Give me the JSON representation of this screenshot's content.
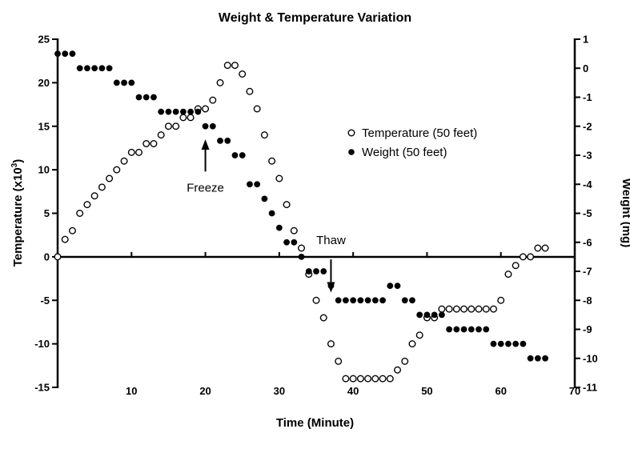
{
  "chart_data": {
    "type": "scatter",
    "title": "Weight & Temperature Variation",
    "xlabel": "Time (Minute)",
    "ylabel": "Temperature (x10",
    "ylabel_sup": "3",
    "ylabel_close": ")",
    "y2label": "Weight (mg)",
    "xlim": [
      0,
      70
    ],
    "ylim": [
      -15,
      25
    ],
    "y2lim": [
      -11,
      1
    ],
    "x_ticks": [
      10,
      20,
      30,
      40,
      50,
      60,
      70
    ],
    "y_ticks": [
      -15,
      -10,
      -5,
      0,
      5,
      10,
      15,
      20,
      25
    ],
    "y2_ticks": [
      -11,
      -10,
      -9,
      -8,
      -7,
      -6,
      -5,
      -4,
      -3,
      -2,
      -1,
      0,
      1
    ],
    "legend": [
      {
        "label": "Temperature (50 feet)",
        "marker": "open-circle"
      },
      {
        "label": "Weight (50 feet)",
        "marker": "filled-circle"
      }
    ],
    "annotations": [
      {
        "text": "Freeze",
        "x": 20,
        "arrow_tip_y": 13.5,
        "arrow_tail_y": 9.8,
        "direction": "up"
      },
      {
        "text": "Thaw",
        "x": 37,
        "arrow_tip_y": -4.1,
        "arrow_tail_y": -0.3,
        "direction": "down"
      }
    ],
    "series": [
      {
        "name": "Temperature (50 feet)",
        "axis": "left",
        "marker": "open-circle",
        "x": [
          0,
          1,
          2,
          3,
          4,
          5,
          6,
          7,
          8,
          9,
          10,
          11,
          12,
          13,
          14,
          15,
          16,
          17,
          18,
          19,
          20,
          21,
          22,
          23,
          24,
          25,
          26,
          27,
          28,
          29,
          30,
          31,
          32,
          33,
          34,
          35,
          36,
          37,
          38,
          39,
          40,
          41,
          42,
          43,
          44,
          45,
          46,
          47,
          48,
          49,
          50,
          51,
          52,
          53,
          54,
          55,
          56,
          57,
          58,
          59,
          60,
          61,
          62,
          63,
          64,
          65,
          66
        ],
        "values": [
          0,
          2,
          3,
          5,
          6,
          7,
          8,
          9,
          10,
          11,
          12,
          12,
          13,
          13,
          14,
          15,
          15,
          16,
          16,
          17,
          17,
          18,
          20,
          22,
          22,
          21,
          19,
          17,
          14,
          11,
          9,
          6,
          3,
          1,
          -2,
          -5,
          -7,
          -10,
          -12,
          -14,
          -14,
          -14,
          -14,
          -14,
          -14,
          -14,
          -13,
          -12,
          -10,
          -9,
          -7,
          -7,
          -6,
          -6,
          -6,
          -6,
          -6,
          -6,
          -6,
          -6,
          -5,
          -2,
          -1,
          0,
          0,
          1,
          1
        ]
      },
      {
        "name": "Weight (50 feet)",
        "axis": "right",
        "marker": "filled-circle",
        "x": [
          0,
          1,
          2,
          3,
          4,
          5,
          6,
          7,
          8,
          9,
          10,
          11,
          12,
          13,
          14,
          15,
          16,
          17,
          18,
          19,
          20,
          21,
          22,
          23,
          24,
          25,
          26,
          27,
          28,
          29,
          30,
          31,
          32,
          33,
          34,
          35,
          36,
          37,
          38,
          39,
          40,
          41,
          42,
          43,
          44,
          45,
          46,
          47,
          48,
          49,
          50,
          51,
          52,
          53,
          54,
          55,
          56,
          57,
          58,
          59,
          60,
          61,
          62,
          63,
          64,
          65,
          66
        ],
        "values": [
          0.5,
          0.5,
          0.5,
          0,
          0,
          0,
          0,
          0,
          -0.5,
          -0.5,
          -0.5,
          -1,
          -1,
          -1,
          -1.5,
          -1.5,
          -1.5,
          -1.5,
          -1.5,
          -1.5,
          -2,
          -2,
          -2.5,
          -2.5,
          -3,
          -3,
          -4,
          -4,
          -4.5,
          -5,
          -5.5,
          -6,
          -6,
          -6.5,
          -7,
          -7,
          -7,
          -7.5,
          -8,
          -8,
          -8,
          -8,
          -8,
          -8,
          -8,
          -7.5,
          -7.5,
          -8,
          -8,
          -8.5,
          -8.5,
          -8.5,
          -8.5,
          -9,
          -9,
          -9,
          -9,
          -9,
          -9,
          -9.5,
          -9.5,
          -9.5,
          -9.5,
          -9.5,
          -10,
          -10,
          -10
        ]
      }
    ]
  }
}
